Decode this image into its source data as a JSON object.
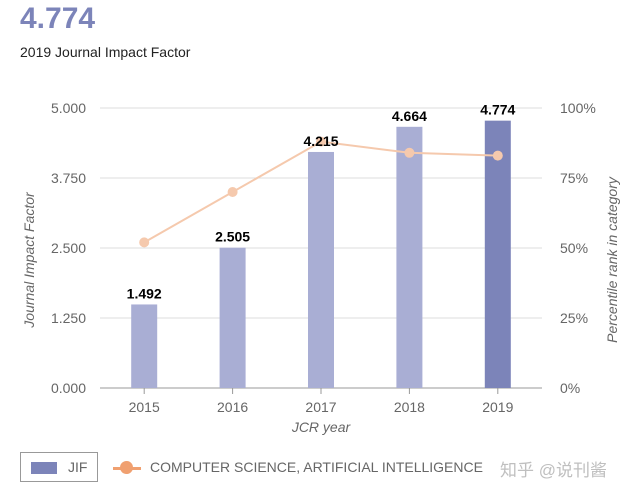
{
  "header": {
    "value": "4.774",
    "label": "2019 Journal Impact Factor"
  },
  "watermark": "知乎 @说刊酱",
  "chart_data": {
    "type": "bar",
    "categories": [
      "2015",
      "2016",
      "2017",
      "2018",
      "2019"
    ],
    "xlabel": "JCR year",
    "ylabel": "Journal Impact Factor",
    "y2label": "Percentile rank in category",
    "ylim": [
      0,
      5
    ],
    "y2lim": [
      0,
      100
    ],
    "yticks": [
      "0.000",
      "1.250",
      "2.500",
      "3.750",
      "5.000"
    ],
    "y2ticks": [
      "0%",
      "25%",
      "50%",
      "75%",
      "100%"
    ],
    "grid": true,
    "legend": "bottom-left",
    "series": [
      {
        "name": "JIF",
        "type": "bar",
        "values": [
          1.492,
          2.505,
          4.215,
          4.664,
          4.774
        ],
        "labels": [
          "1.492",
          "2.505",
          "4.215",
          "4.664",
          "4.774"
        ],
        "color": "#a9aed4",
        "highlight_color": "#7c84b9"
      },
      {
        "name": "COMPUTER SCIENCE, ARTIFICIAL INTELLIGENCE",
        "type": "line",
        "axis": "right",
        "values": [
          52,
          70,
          88,
          84,
          83
        ],
        "color": "#f5c9ad"
      }
    ]
  },
  "legend": {
    "jif": "JIF",
    "category": "COMPUTER SCIENCE, ARTIFICIAL INTELLIGENCE",
    "jif_color": "#7c84b9",
    "category_color": "#f0a070"
  }
}
